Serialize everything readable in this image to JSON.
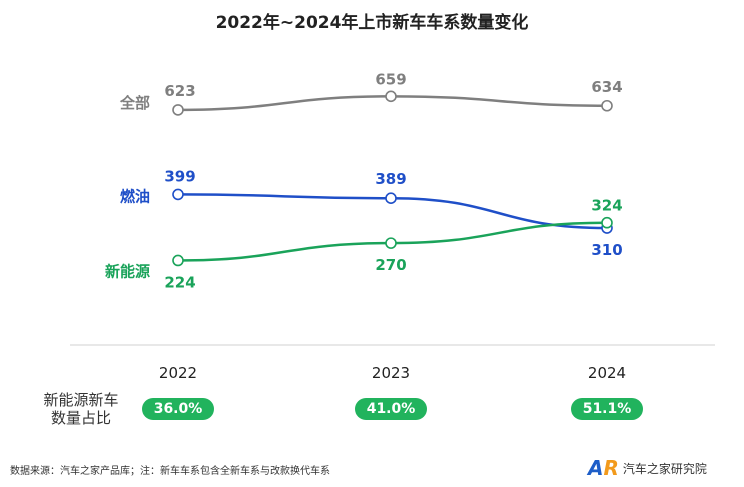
{
  "chart_data": {
    "type": "line",
    "title": "2022年~2024年上市新车车系数量变化",
    "categories": [
      "2022",
      "2023",
      "2024"
    ],
    "ylim": [
      0,
      700
    ],
    "grid": false,
    "series": [
      {
        "name": "全部",
        "values": [
          623,
          659,
          634
        ],
        "color": "#7f7f7f"
      },
      {
        "name": "燃油",
        "values": [
          399,
          389,
          310
        ],
        "color": "#1f4fc8"
      },
      {
        "name": "新能源",
        "values": [
          224,
          270,
          324
        ],
        "color": "#1aa35a"
      }
    ],
    "share_label": "新能源新车数量占比",
    "share_values": [
      "36.0%",
      "41.0%",
      "51.1%"
    ]
  },
  "footer": {
    "source": "数据来源：汽车之家产品库；注：新车车系包含全新车系与改款换代车系",
    "logo_text": "汽车之家研究院",
    "logo_mark": "AR"
  }
}
